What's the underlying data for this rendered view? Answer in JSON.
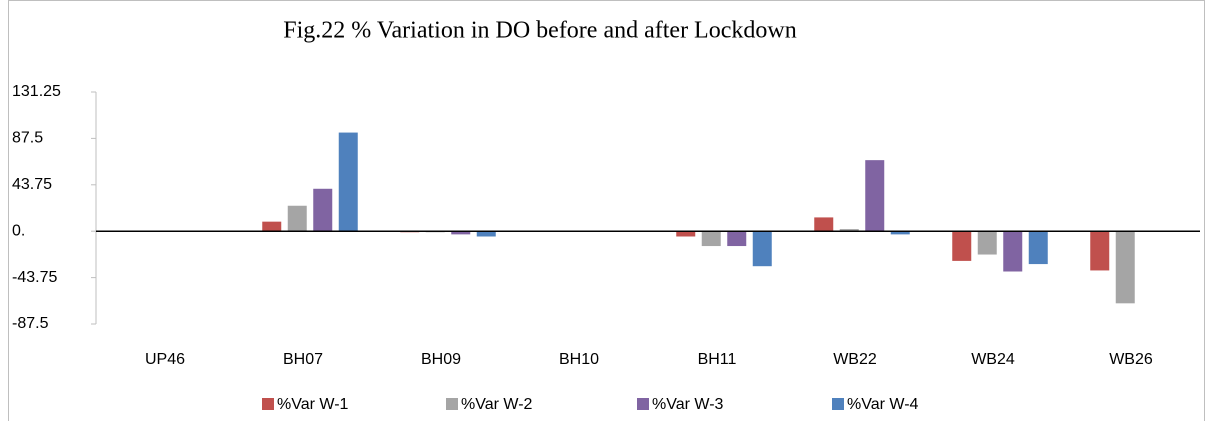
{
  "chart_data": {
    "type": "bar",
    "title": "Fig.22 % Variation in DO before and after Lockdown",
    "categories": [
      "UP46",
      "BH07",
      "BH09",
      "BH10",
      "BH11",
      "WB22",
      "WB24",
      "WB26"
    ],
    "series": [
      {
        "name": "%Var W-1",
        "color": "#c0504d",
        "values": [
          0,
          9,
          -1,
          0,
          -5,
          13,
          -28,
          -37
        ]
      },
      {
        "name": "%Var W-2",
        "color": "#a5a5a5",
        "values": [
          0,
          24,
          -1,
          0,
          -14,
          2,
          -22,
          -68
        ]
      },
      {
        "name": "%Var W-3",
        "color": "#8064a2",
        "values": [
          0,
          40,
          -3,
          0,
          -14,
          67,
          -38,
          null
        ]
      },
      {
        "name": "%Var W-4",
        "color": "#4f81bd",
        "values": [
          0,
          93,
          -5,
          0,
          -33,
          -3,
          -31,
          null
        ]
      }
    ],
    "ylim": [
      -87.5,
      131.25
    ],
    "yticks": [
      -87.5,
      -43.75,
      {
        "value": 0,
        "label": "0."
      },
      43.75,
      87.5,
      131.25
    ],
    "legend": "bottom"
  }
}
